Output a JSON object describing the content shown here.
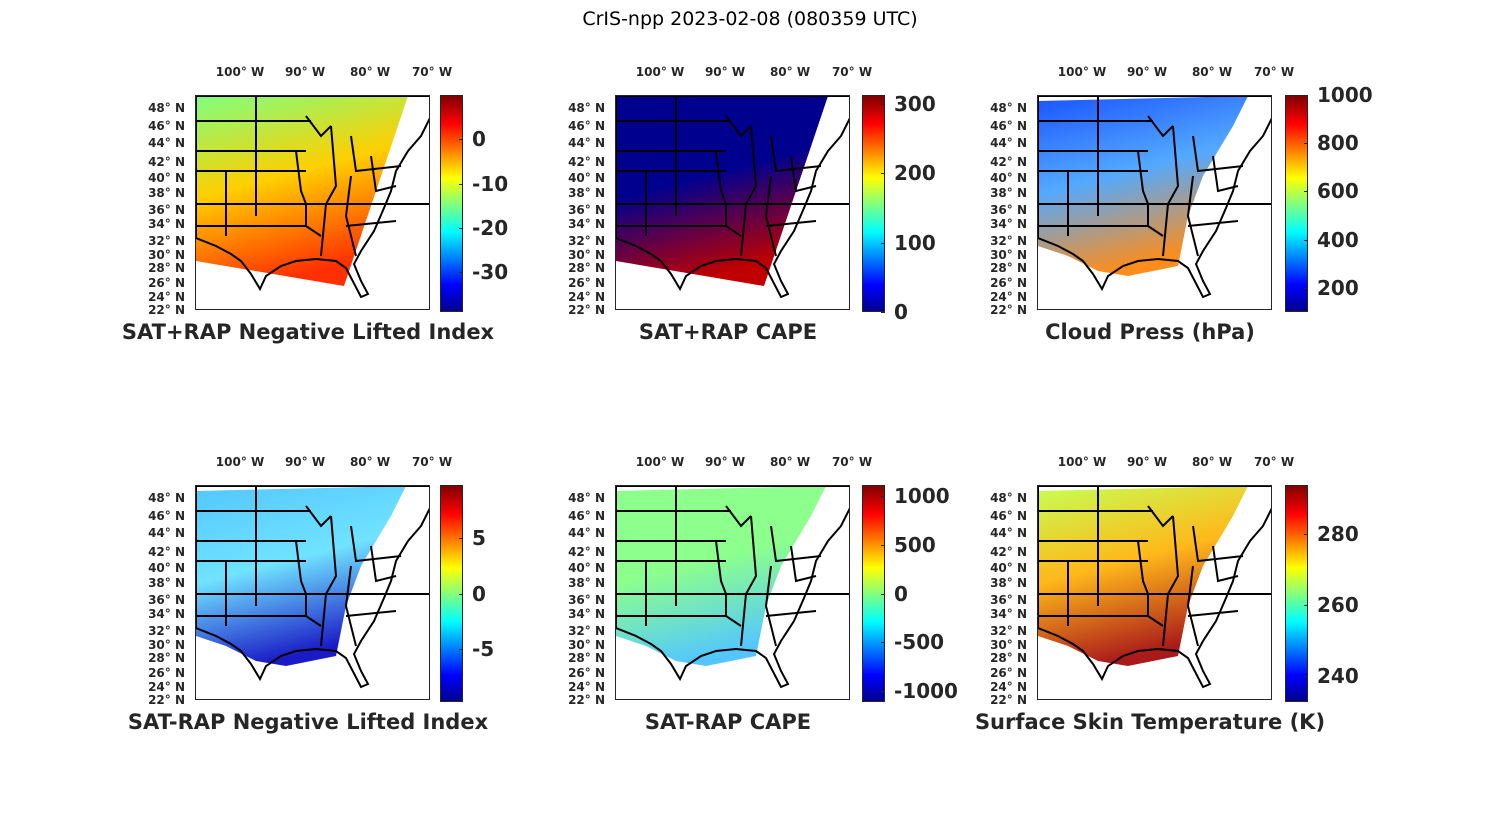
{
  "title": "CrIS-npp 2023-02-08 (080359 UTC)",
  "lon_labels": [
    "100° W",
    "90° W",
    "80° W",
    "70° W"
  ],
  "lat_labels": [
    "48° N",
    "46° N",
    "44° N",
    "42° N",
    "40° N",
    "38° N",
    "36° N",
    "34° N",
    "32° N",
    "30° N",
    "28° N",
    "26° N",
    "24° N",
    "22° N"
  ],
  "colormap": "jet",
  "panels": [
    {
      "title": "SAT+RAP Negative Lifted Index",
      "clim": [
        -39,
        10
      ],
      "ticks": [
        "0",
        "-10",
        "-20",
        "-30"
      ],
      "tick_values": [
        0,
        -10,
        -20,
        -30
      ],
      "swath_colors": [
        "#7fff7f",
        "#ffcf00",
        "#ff3000"
      ],
      "coverage": "full"
    },
    {
      "title": "SAT+RAP CAPE",
      "clim": [
        0,
        313
      ],
      "ticks": [
        "300",
        "200",
        "100",
        "0"
      ],
      "tick_values": [
        300,
        200,
        100,
        0
      ],
      "swath_colors": [
        "#00008f",
        "#00008f",
        "#c00000"
      ],
      "coverage": "full"
    },
    {
      "title": "Cloud Press (hPa)",
      "clim": [
        100,
        1000
      ],
      "ticks": [
        "1000",
        "800",
        "600",
        "400",
        "200"
      ],
      "tick_values": [
        1000,
        800,
        600,
        400,
        200
      ],
      "swath_colors": [
        "#0040ff",
        "#40a0ff",
        "#ff8000"
      ],
      "coverage": "patchy"
    },
    {
      "title": "SAT-RAP Negative Lifted Index",
      "clim": [
        -9.7,
        9.7
      ],
      "ticks": [
        "5",
        "0",
        "-5"
      ],
      "tick_values": [
        5,
        0,
        -5
      ],
      "swath_colors": [
        "#40c0ff",
        "#60e0ff",
        "#0000c0"
      ],
      "coverage": "patchy"
    },
    {
      "title": "SAT-RAP CAPE",
      "clim": [
        -1110,
        1110
      ],
      "ticks": [
        "1000",
        "500",
        "0",
        "-500",
        "-1000"
      ],
      "tick_values": [
        1000,
        500,
        0,
        -500,
        -1000
      ],
      "swath_colors": [
        "#80ff80",
        "#80ff80",
        "#40c0ff"
      ],
      "coverage": "patchy"
    },
    {
      "title": "Surface Skin Temperature (K)",
      "clim": [
        232.8,
        293.6
      ],
      "ticks": [
        "280",
        "260",
        "240"
      ],
      "tick_values": [
        280,
        260,
        240
      ],
      "swath_colors": [
        "#c0ff40",
        "#ffb000",
        "#a00000"
      ],
      "coverage": "patchy"
    }
  ]
}
